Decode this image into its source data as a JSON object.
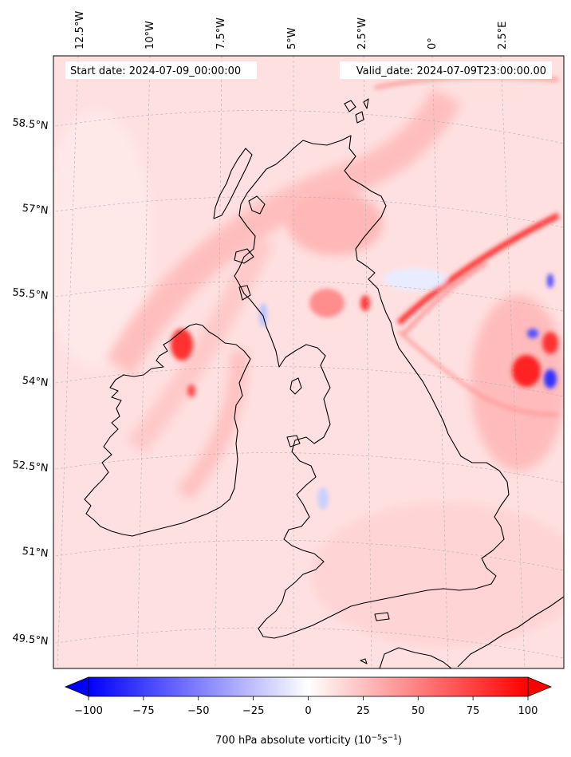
{
  "header": {
    "start_date": "Start date: 2024-07-09_00:00:00",
    "valid_date": "Valid_date: 2024-07-09T23:00:00.00"
  },
  "map": {
    "projection": "lambert-conformal",
    "field": "700 hPa absolute vorticity",
    "gridlines": true,
    "coastlines": true,
    "lon_labels": [
      "12.5°W",
      "10°W",
      "7.5°W",
      "5°W",
      "2.5°W",
      "0°",
      "2.5°E"
    ],
    "lat_labels": [
      "58.5°N",
      "57°N",
      "55.5°N",
      "54°N",
      "52.5°N",
      "51°N",
      "49.5°N"
    ]
  },
  "colorbar": {
    "label_main": "700 hPa absolute vorticity (10",
    "label_exp1": "−5",
    "label_mid": "s",
    "label_exp2": "−1",
    "label_end": ")",
    "ticks": [
      "−100",
      "−75",
      "−50",
      "−25",
      "0",
      "25",
      "50",
      "75",
      "100"
    ],
    "min": -100,
    "max": 100,
    "extend": "both",
    "colors": {
      "negative": "#0000ff",
      "zero": "#ffffff",
      "positive": "#ff0000"
    }
  }
}
